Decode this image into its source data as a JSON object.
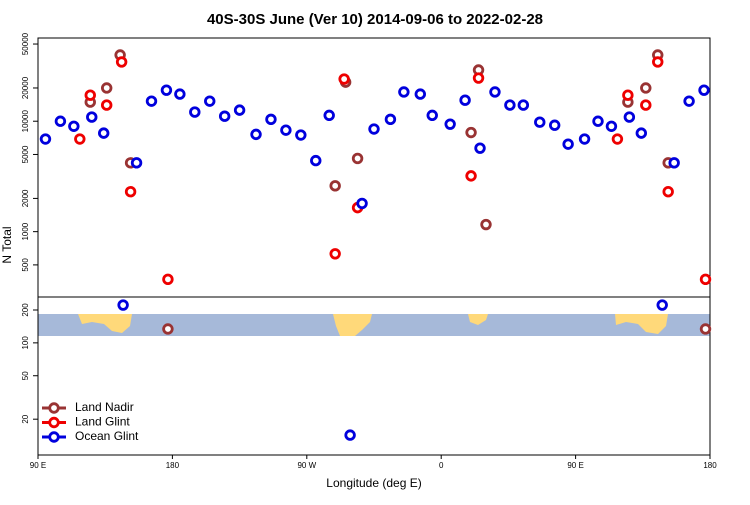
{
  "chart_data": [
    {
      "type": "scatter",
      "title": "40S-30S June (Ver 10)   2014-09-06 to 2022-02-28",
      "ylabel": "N Total",
      "log": true,
      "ylim": [
        256,
        56700
      ],
      "yticks": [
        500,
        1000,
        2000,
        5000,
        10000,
        20000,
        50000
      ],
      "series": [
        {
          "color": "#993333",
          "x": [
            125,
            136,
            145,
            152,
            289,
            296,
            304,
            380,
            385,
            390,
            485,
            497,
            505,
            512
          ],
          "values": [
            14900,
            20000,
            39800,
            4200,
            2600,
            22600,
            4600,
            7900,
            29100,
            1160,
            14900,
            20000,
            39800,
            4200
          ]
        },
        {
          "color": "#ee0000",
          "x": [
            118,
            125,
            136,
            146,
            152,
            177,
            289,
            295,
            304,
            380,
            385,
            478,
            485,
            497,
            505,
            512,
            537
          ],
          "values": [
            6900,
            17200,
            14000,
            34400,
            2300,
            370,
            630,
            24100,
            1650,
            3200,
            24600,
            6900,
            17200,
            14000,
            34400,
            2300,
            370
          ]
        },
        {
          "color": "#0000dd",
          "x": [
            95,
            105,
            114,
            126,
            134,
            156,
            166,
            176,
            185,
            195,
            205,
            215,
            225,
            236,
            246,
            256,
            266,
            276,
            285,
            307,
            315,
            326,
            335,
            346,
            354,
            366,
            376,
            386,
            396,
            406,
            415,
            426,
            436,
            445,
            456,
            465,
            474,
            486,
            494,
            516,
            526,
            536
          ],
          "values": [
            6900,
            10000,
            9000,
            10900,
            7800,
            4200,
            15200,
            19100,
            17600,
            12100,
            15200,
            11100,
            12600,
            7600,
            10400,
            8300,
            7500,
            4400,
            11300,
            1800,
            8500,
            10400,
            18400,
            17600,
            11300,
            9400,
            15500,
            5700,
            18400,
            14000,
            14000,
            9800,
            9200,
            6200,
            6900,
            10000,
            9000,
            10900,
            7800,
            4200,
            15200,
            19100
          ]
        }
      ]
    },
    {
      "type": "scatter",
      "log": true,
      "xlabel": "Longitude (deg E)",
      "legend": "lower left",
      "xlim": [
        90,
        540
      ],
      "xticks": [
        {
          "value": 90,
          "label": "90 E"
        },
        180,
        {
          "value": 270,
          "label": "90 W"
        },
        {
          "value": 360,
          "label": "0"
        },
        {
          "value": 450,
          "label": "90 E"
        },
        {
          "value": 540,
          "label": "180"
        }
      ],
      "ylim": [
        9.4,
        263
      ],
      "yticks": [
        20,
        50,
        100,
        200
      ],
      "series": [
        {
          "name": "Land Nadir",
          "color": "#993333",
          "x": [
            177,
            537
          ],
          "values": [
            134,
            134
          ]
        },
        {
          "name": "Land Glint",
          "color": "#ee0000",
          "x": [],
          "values": []
        },
        {
          "name": "Ocean Glint",
          "color": "#0000dd",
          "x": [
            147,
            299,
            508
          ],
          "values": [
            222,
            14.3,
            222
          ]
        }
      ]
    }
  ]
}
